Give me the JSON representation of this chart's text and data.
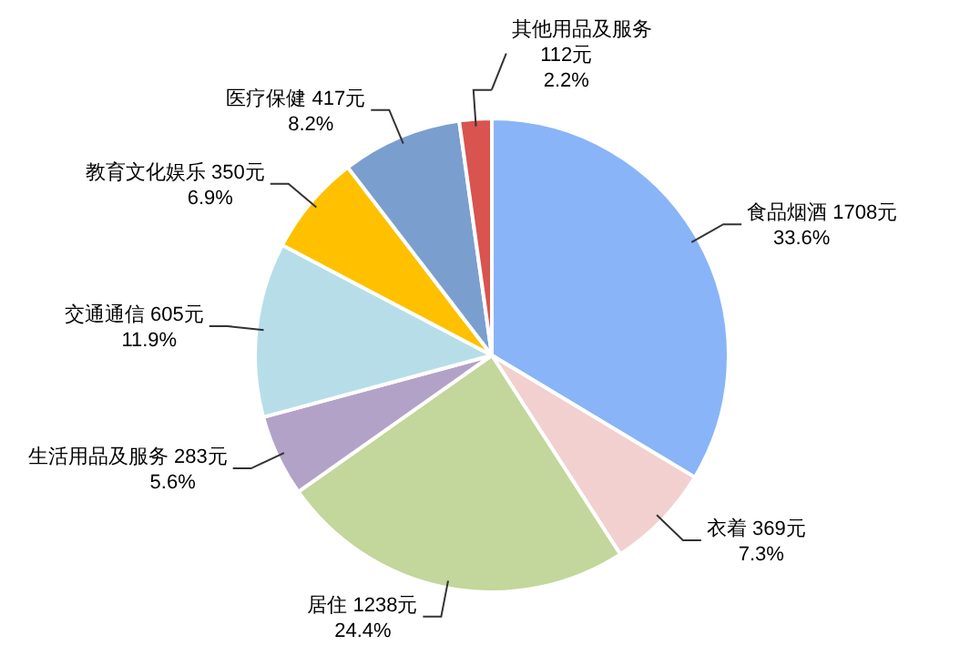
{
  "chart_data": {
    "type": "pie",
    "categories": [
      "食品烟酒",
      "衣着",
      "居住",
      "生活用品及服务",
      "交通通信",
      "教育文化娱乐",
      "医疗保健",
      "其他用品及服务"
    ],
    "values": [
      1708,
      369,
      1238,
      283,
      605,
      350,
      417,
      112
    ],
    "colors": [
      "#8ab4f8",
      "#f2d0d0",
      "#c3d69b",
      "#b3a2c7",
      "#b7dee8",
      "#ffc000",
      "#7a9fcf",
      "#d9534f"
    ],
    "value_labels": [
      "1708元\n33.6%",
      "369元\n7.3%",
      "1238元\n24.4%",
      "283元\n5.6%",
      "605元\n11.9%",
      "350元\n6.9%",
      "417元\n8.2%",
      "112元\n2.2%"
    ]
  }
}
